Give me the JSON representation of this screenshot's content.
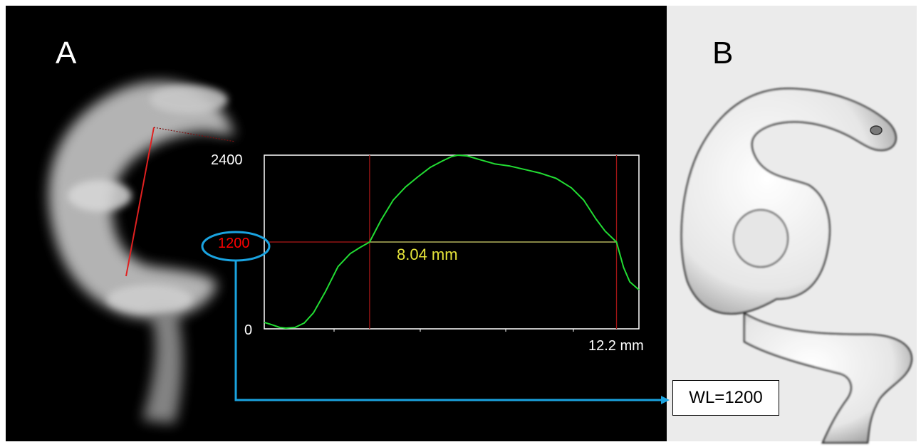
{
  "panels": {
    "a": {
      "letter": "A"
    },
    "b": {
      "letter": "B"
    }
  },
  "chart_data": {
    "type": "line",
    "x_max_label": "12.2 mm",
    "y_ticks": [
      "0",
      "1200",
      "2400"
    ],
    "ylim": [
      0,
      2400
    ],
    "xlim": [
      0,
      12.2
    ],
    "threshold_value": 1200,
    "threshold_label": "1200",
    "measurement_label": "8.04 mm",
    "crossings_mm": [
      3.43,
      11.47
    ],
    "series": [
      {
        "color": "#22dd33",
        "x": [
          0,
          0.3,
          0.5,
          0.7,
          1.0,
          1.3,
          1.6,
          2.0,
          2.4,
          2.8,
          3.1,
          3.43,
          3.8,
          4.2,
          4.6,
          5.0,
          5.4,
          5.8,
          6.1,
          6.3,
          6.6,
          7.0,
          7.5,
          8.0,
          8.5,
          9.0,
          9.5,
          10.0,
          10.4,
          10.8,
          11.1,
          11.47,
          11.7,
          11.9,
          12.2
        ],
        "y": [
          90,
          50,
          20,
          10,
          20,
          80,
          220,
          520,
          860,
          1040,
          1120,
          1200,
          1500,
          1780,
          1960,
          2100,
          2230,
          2320,
          2380,
          2400,
          2390,
          2340,
          2280,
          2250,
          2200,
          2150,
          2080,
          1950,
          1780,
          1520,
          1350,
          1200,
          850,
          650,
          540
        ]
      }
    ]
  },
  "annotation": {
    "wl_label": "WL=1200",
    "arrow_color": "#1aa3e0"
  }
}
